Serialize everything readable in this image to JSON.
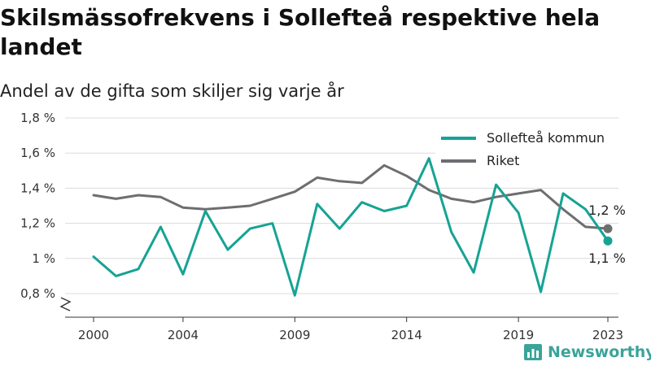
{
  "title": "Skilsmässofrekvens i Sollefteå respektive hela landet",
  "subtitle": "Andel av de gifta som skiljer sig varje år",
  "brand": "Newsworthy",
  "chart_data": {
    "type": "line",
    "title": "Skilsmässofrekvens i Sollefteå respektive hela landet",
    "subtitle": "Andel av de gifta som skiljer sig varje år",
    "x": [
      2000,
      2001,
      2002,
      2003,
      2004,
      2005,
      2006,
      2007,
      2008,
      2009,
      2010,
      2011,
      2012,
      2013,
      2014,
      2015,
      2016,
      2017,
      2018,
      2019,
      2020,
      2021,
      2022,
      2023
    ],
    "x_ticks": [
      2000,
      2004,
      2009,
      2014,
      2019,
      2023
    ],
    "y_ticks": [
      0.8,
      1.0,
      1.2,
      1.4,
      1.6,
      1.8
    ],
    "y_tick_labels": [
      "0,8 %",
      "1 %",
      "1,2 %",
      "1,4 %",
      "1,6 %",
      "1,8 %"
    ],
    "ylim": [
      0.8,
      1.8
    ],
    "y_axis_break": true,
    "grid": "horizontal",
    "legend_position": "top-right",
    "series": [
      {
        "name": "Sollefteå kommun",
        "color": "#16a394",
        "values": [
          1.01,
          0.9,
          0.94,
          1.18,
          0.91,
          1.27,
          1.05,
          1.17,
          1.2,
          0.79,
          1.31,
          1.17,
          1.32,
          1.27,
          1.3,
          1.57,
          1.15,
          0.92,
          1.42,
          1.26,
          0.81,
          1.37,
          1.28,
          1.1
        ],
        "end_label": "1,1 %"
      },
      {
        "name": "Riket",
        "color": "#6e6d70",
        "values": [
          1.36,
          1.34,
          1.36,
          1.35,
          1.29,
          1.28,
          1.29,
          1.3,
          1.34,
          1.38,
          1.46,
          1.44,
          1.43,
          1.53,
          1.47,
          1.39,
          1.34,
          1.32,
          1.35,
          1.37,
          1.39,
          1.28,
          1.18,
          1.17
        ],
        "end_label": "1,2 %"
      }
    ]
  }
}
